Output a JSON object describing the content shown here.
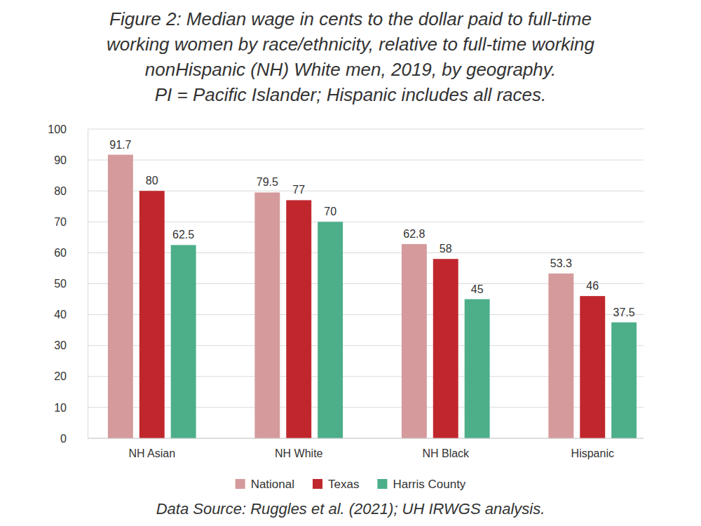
{
  "chart_data": {
    "type": "bar",
    "title": "Figure 2: Median wage in cents to the dollar paid to full-time\nworking women by race/ethnicity, relative to full-time working\nnonHispanic (NH) White men, 2019, by geography.\nPI = Pacific Islander; Hispanic includes all races.",
    "caption": "Data Source: Ruggles et al. (2021); UH IRWGS analysis.",
    "categories": [
      "NH Asian",
      "NH White",
      "NH Black",
      "Hispanic"
    ],
    "series": [
      {
        "name": "National",
        "color": "#d59a9c",
        "values": [
          91.7,
          79.5,
          62.8,
          53.3
        ]
      },
      {
        "name": "Texas",
        "color": "#c0272d",
        "values": [
          80,
          77,
          58,
          46
        ]
      },
      {
        "name": "Harris County",
        "color": "#4caf8a",
        "values": [
          62.5,
          70,
          45,
          37.5
        ]
      }
    ],
    "ylim": [
      0,
      100
    ],
    "yticks": [
      0,
      10,
      20,
      30,
      40,
      50,
      60,
      70,
      80,
      90,
      100
    ],
    "grid": true,
    "legend": "bottom",
    "data_labels": true
  }
}
